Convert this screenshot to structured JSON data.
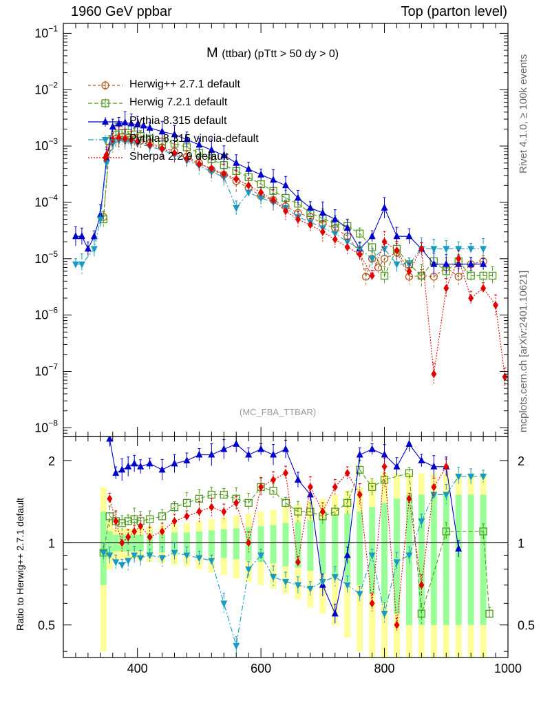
{
  "header": {
    "left": "1960 GeV ppbar",
    "right": "Top (parton level)"
  },
  "side_labels": {
    "rivet": "Rivet 4.1.0, ≥ 100k events",
    "mcplots": "mcplots.cern.ch [arXiv:2401.10621]"
  },
  "plot_title": {
    "main": "M",
    "sub": "(ttbar) (pTtt > 50 dy > 0)"
  },
  "analysis_tag": "(MC_FBA_TTBAR)",
  "ratio_ylabel": "Ratio to Herwig++ 2.7.1 default",
  "colors": {
    "herwigpp": "#b05a1e",
    "herwig7": "#4e9a1e",
    "pythia": "#0000cc",
    "vincia": "#1a9ac0",
    "sherpa": "#e00000",
    "band_yellow": "#ffff99",
    "band_green": "#99ff99"
  },
  "chart_data": [
    {
      "type": "line",
      "panel": "main",
      "title": "M (ttbar) (pTtt > 50 dy > 0)",
      "xlabel": "",
      "ylabel": "",
      "yscale": "log",
      "xlim": [
        280,
        1000
      ],
      "ylim": [
        7e-09,
        0.15
      ],
      "yticks": [
        {
          "value": 1e-08,
          "mant": "10",
          "exp": "−8"
        },
        {
          "value": 1e-07,
          "mant": "10",
          "exp": "−7"
        },
        {
          "value": 1e-06,
          "mant": "10",
          "exp": "−6"
        },
        {
          "value": 1e-05,
          "mant": "10",
          "exp": "−5"
        },
        {
          "value": 0.0001,
          "mant": "10",
          "exp": "−4"
        },
        {
          "value": 0.001,
          "mant": "10",
          "exp": "−3"
        },
        {
          "value": 0.01,
          "mant": "10",
          "exp": "−2"
        },
        {
          "value": 0.1,
          "mant": "10",
          "exp": "−1"
        }
      ],
      "legend_position": "top-left",
      "series": [
        {
          "name": "Herwig++ 2.7.1 default",
          "color_key": "herwigpp",
          "marker": "open-circle",
          "dash": "4,3",
          "x": [
            345,
            355,
            365,
            375,
            385,
            395,
            405,
            420,
            440,
            460,
            480,
            500,
            520,
            540,
            560,
            580,
            600,
            620,
            640,
            660,
            680,
            700,
            720,
            740,
            760,
            770,
            780,
            790,
            800,
            820,
            840,
            860,
            880,
            900,
            920,
            940,
            960
          ],
          "y": [
            5.5e-05,
            0.00095,
            0.00135,
            0.00145,
            0.0014,
            0.0013,
            0.00125,
            0.00112,
            0.00095,
            0.0008,
            0.00065,
            0.0005,
            0.00038,
            0.00031,
            0.00024,
            0.00018,
            0.00013,
            0.00011,
            8.5e-05,
            6.5e-05,
            5.5e-05,
            4.2e-05,
            3.5e-05,
            2.5e-05,
            1.3e-05,
            4.8e-06,
            1e-05,
            7e-06,
            1e-05,
            1.3e-05,
            4.8e-06,
            5e-06,
            4.8e-06,
            7e-06,
            4.8e-06,
            8e-06,
            9e-06
          ]
        },
        {
          "name": "Herwig 7.2.1 default",
          "color_key": "herwig7",
          "marker": "open-square",
          "dash": "6,3",
          "x": [
            345,
            355,
            365,
            375,
            385,
            395,
            405,
            420,
            440,
            460,
            480,
            500,
            520,
            540,
            560,
            580,
            600,
            620,
            640,
            660,
            680,
            700,
            720,
            740,
            760,
            780,
            800,
            820,
            840,
            860,
            880,
            900,
            920,
            940,
            960,
            975
          ],
          "y": [
            5e-05,
            0.0012,
            0.0016,
            0.0017,
            0.0017,
            0.0016,
            0.0015,
            0.00135,
            0.0012,
            0.0011,
            0.00095,
            0.00075,
            0.00058,
            0.00046,
            0.00036,
            0.00028,
            0.00021,
            0.00016,
            0.00012,
            9.5e-05,
            6.5e-05,
            5.2e-05,
            4.2e-05,
            3.8e-05,
            2.8e-05,
            1.6e-05,
            5e-06,
            1.5e-05,
            8e-06,
            5e-06,
            9e-06,
            6e-06,
            9e-06,
            5e-06,
            5e-06,
            5e-06
          ]
        },
        {
          "name": "Pythia 8.315 default",
          "color_key": "pythia",
          "marker": "filled-triangle-up",
          "dash": "",
          "x": [
            300,
            310,
            320,
            330,
            340,
            350,
            360,
            370,
            380,
            390,
            400,
            410,
            420,
            440,
            460,
            480,
            500,
            520,
            540,
            560,
            580,
            600,
            620,
            640,
            660,
            680,
            700,
            720,
            740,
            760,
            780,
            800,
            820,
            840,
            860,
            880,
            900,
            920,
            940,
            960
          ],
          "y": [
            2.5e-05,
            2.5e-05,
            1.5e-05,
            2.5e-05,
            6e-05,
            0.0006,
            0.0022,
            0.0025,
            0.0026,
            0.0025,
            0.0024,
            0.0023,
            0.0021,
            0.0018,
            0.0016,
            0.0013,
            0.00105,
            0.00085,
            0.00068,
            0.0005,
            0.00039,
            0.00031,
            0.00025,
            0.0002,
            0.00012,
            8e-05,
            6.5e-05,
            5e-05,
            3.5e-05,
            1.5e-05,
            2.5e-05,
            8e-05,
            2.5e-05,
            2.5e-05,
            1.5e-05,
            8e-06,
            8e-06,
            8e-06,
            8e-06,
            8e-06
          ]
        },
        {
          "name": "Pythia 8.315 vincia-default",
          "color_key": "vincia",
          "marker": "filled-triangle-down",
          "dash": "8,3,2,3",
          "x": [
            300,
            310,
            330,
            340,
            350,
            360,
            370,
            380,
            390,
            400,
            420,
            440,
            460,
            480,
            500,
            520,
            540,
            560,
            580,
            600,
            620,
            640,
            660,
            680,
            700,
            720,
            740,
            760,
            780,
            800,
            820,
            840,
            860,
            880,
            900,
            920,
            940,
            960
          ],
          "y": [
            8e-06,
            8e-06,
            1.5e-05,
            5e-05,
            0.0005,
            0.0011,
            0.00125,
            0.0012,
            0.00118,
            0.0011,
            0.00098,
            0.00085,
            0.0007,
            0.00055,
            0.00045,
            0.00035,
            0.00028,
            8e-05,
            0.00015,
            0.00012,
            0.0001,
            8e-05,
            5.5e-05,
            4.5e-05,
            3.5e-05,
            2.8e-05,
            2e-05,
            1.5e-05,
            1e-05,
            1.5e-05,
            8e-06,
            8e-06,
            1.5e-05,
            1.5e-05,
            1.5e-05,
            1.5e-05,
            1.5e-05,
            1.5e-05
          ]
        },
        {
          "name": "Sherpa 2.2.9 default",
          "color_key": "sherpa",
          "marker": "filled-diamond",
          "dash": "2,2",
          "x": [
            350,
            360,
            370,
            380,
            390,
            400,
            420,
            440,
            460,
            480,
            500,
            520,
            540,
            560,
            580,
            600,
            620,
            640,
            660,
            680,
            700,
            720,
            740,
            760,
            780,
            800,
            820,
            840,
            860,
            880,
            900,
            920,
            940,
            960,
            980,
            995
          ],
          "y": [
            0.0007,
            0.0013,
            0.0014,
            0.00135,
            0.0013,
            0.0012,
            0.00105,
            0.0009,
            0.00075,
            0.0006,
            0.00048,
            0.0004,
            0.00032,
            0.00026,
            0.0002,
            0.00015,
            0.00011,
            7e-05,
            5e-05,
            4e-05,
            3e-05,
            2.2e-05,
            1.6e-05,
            1.2e-05,
            5e-06,
            2e-05,
            1.4e-05,
            6e-06,
            1.5e-05,
            9e-08,
            3e-06,
            1e-05,
            2e-06,
            3e-06,
            1.5e-06,
            8e-08
          ]
        }
      ]
    },
    {
      "type": "line",
      "panel": "ratio",
      "xlabel": "",
      "ylabel": "Ratio to Herwig++ 2.7.1 default",
      "yscale": "log",
      "xlim": [
        280,
        1000
      ],
      "ylim": [
        0.38,
        2.45
      ],
      "xticks": [
        400,
        600,
        800,
        1000
      ],
      "yticks": [
        {
          "value": 0.5,
          "label": "0.5"
        },
        {
          "value": 1,
          "label": "1"
        },
        {
          "value": 2,
          "label": "2"
        }
      ],
      "reference": 1,
      "band": {
        "x": [
          345,
          355,
          365,
          375,
          385,
          395,
          405,
          420,
          440,
          460,
          480,
          500,
          520,
          540,
          560,
          580,
          600,
          620,
          640,
          660,
          680,
          700,
          720,
          740,
          760,
          780,
          800,
          820,
          840,
          860,
          880,
          900,
          920,
          940,
          960
        ],
        "yellow_rel_err": [
          0.6,
          0.2,
          0.13,
          0.13,
          0.13,
          0.13,
          0.14,
          0.15,
          0.16,
          0.17,
          0.18,
          0.2,
          0.22,
          0.24,
          0.26,
          0.28,
          0.3,
          0.32,
          0.35,
          0.38,
          0.42,
          0.45,
          0.5,
          0.55,
          0.6,
          0.7,
          0.8,
          0.8,
          0.8,
          0.8,
          0.8,
          0.8,
          0.8,
          0.8,
          0.8
        ],
        "green_rel_err": [
          0.3,
          0.1,
          0.07,
          0.07,
          0.07,
          0.07,
          0.07,
          0.08,
          0.08,
          0.09,
          0.09,
          0.1,
          0.11,
          0.12,
          0.13,
          0.14,
          0.15,
          0.16,
          0.18,
          0.19,
          0.21,
          0.23,
          0.25,
          0.28,
          0.3,
          0.35,
          0.4,
          0.45,
          0.5,
          0.5,
          0.5,
          0.5,
          0.5,
          0.5,
          0.5
        ]
      },
      "series": [
        {
          "name": "Herwig 7.2.1 default",
          "color_key": "herwig7",
          "marker": "open-square",
          "dash": "6,3",
          "x": [
            345,
            355,
            365,
            375,
            385,
            395,
            405,
            420,
            440,
            460,
            480,
            500,
            520,
            540,
            560,
            580,
            600,
            620,
            640,
            660,
            680,
            700,
            720,
            740,
            760,
            780,
            800,
            840,
            860,
            900,
            960,
            970
          ],
          "y": [
            0.92,
            1.25,
            1.2,
            1.18,
            1.2,
            1.22,
            1.2,
            1.22,
            1.25,
            1.35,
            1.4,
            1.45,
            1.5,
            1.5,
            1.45,
            1.4,
            1.6,
            1.55,
            1.4,
            1.3,
            1.3,
            1.25,
            1.3,
            1.4,
            1.85,
            1.6,
            1.7,
            1.8,
            0.55,
            1.1,
            1.1,
            0.55
          ]
        },
        {
          "name": "Pythia 8.315 default",
          "color_key": "pythia",
          "marker": "filled-triangle-up",
          "dash": "",
          "x": [
            355,
            365,
            375,
            385,
            395,
            405,
            420,
            440,
            460,
            480,
            500,
            520,
            540,
            560,
            580,
            600,
            620,
            640,
            660,
            680,
            700,
            720,
            740,
            760,
            780,
            800,
            820,
            840,
            860,
            880,
            900,
            920
          ],
          "y": [
            2.4,
            1.8,
            1.85,
            1.9,
            1.95,
            1.9,
            1.95,
            1.85,
            1.95,
            2.0,
            2.1,
            2.1,
            2.2,
            2.3,
            2.1,
            2.2,
            2.1,
            2.2,
            1.7,
            1.5,
            0.7,
            0.55,
            0.9,
            2.1,
            2.2,
            2.1,
            1.9,
            2.3,
            2.0,
            1.9,
            1.9,
            0.95
          ]
        },
        {
          "name": "Pythia 8.315 vincia-default",
          "color_key": "vincia",
          "marker": "filled-triangle-down",
          "dash": "8,3,2,3",
          "x": [
            345,
            355,
            365,
            375,
            385,
            395,
            405,
            420,
            440,
            460,
            480,
            500,
            520,
            540,
            560,
            580,
            600,
            620,
            640,
            660,
            680,
            700,
            720,
            740,
            760,
            780,
            800,
            820,
            840,
            860,
            880,
            900,
            920,
            940,
            960
          ],
          "y": [
            0.92,
            0.9,
            0.85,
            0.83,
            0.86,
            0.9,
            0.88,
            0.9,
            0.88,
            0.92,
            0.9,
            0.88,
            0.86,
            0.6,
            0.42,
            0.8,
            0.9,
            0.75,
            0.72,
            0.7,
            0.68,
            0.72,
            0.75,
            0.7,
            0.65,
            0.9,
            0.55,
            0.85,
            0.9,
            1.2,
            1.5,
            1.5,
            1.75,
            1.75,
            1.75
          ]
        },
        {
          "name": "Sherpa 2.2.9 default",
          "color_key": "sherpa",
          "marker": "filled-diamond",
          "dash": "2,2",
          "x": [
            355,
            365,
            375,
            385,
            395,
            405,
            420,
            440,
            460,
            480,
            500,
            520,
            540,
            560,
            580,
            600,
            620,
            640,
            660,
            680,
            700,
            720,
            740,
            760,
            780,
            800,
            820,
            840,
            860,
            880,
            900
          ],
          "y": [
            1.45,
            1.2,
            1.0,
            1.05,
            1.1,
            1.15,
            1.05,
            1.1,
            1.2,
            1.25,
            1.3,
            1.35,
            1.3,
            1.4,
            1.0,
            1.6,
            1.7,
            1.8,
            0.85,
            1.6,
            1.3,
            1.6,
            1.8,
            1.5,
            0.6,
            1.9,
            0.5,
            1.45,
            0.7,
            1.6,
            1.9
          ]
        }
      ]
    }
  ]
}
